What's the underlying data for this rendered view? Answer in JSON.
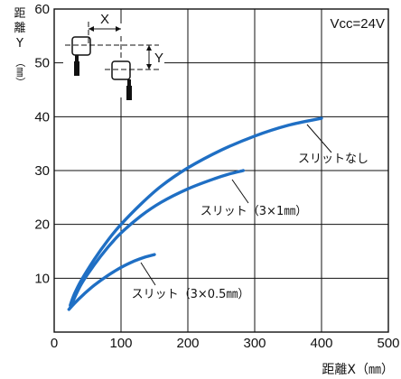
{
  "chart_data": {
    "type": "line",
    "xlabel": "距離X（㎜）",
    "ylabel_chars": [
      "距",
      "離",
      "Y",
      "（㎜）"
    ],
    "xlim": [
      0,
      500
    ],
    "ylim": [
      0,
      60
    ],
    "xticks": [
      0,
      100,
      200,
      300,
      400,
      500
    ],
    "yticks": [
      10,
      20,
      30,
      40,
      50,
      60
    ],
    "origin_label": "0",
    "grid": true,
    "annotation": "Vcc=24V",
    "inset": {
      "x_label": "X",
      "y_label": "Y"
    },
    "line_color": "#1f6fc4",
    "series": [
      {
        "name": "スリットなし",
        "points": [
          [
            24,
            5
          ],
          [
            30,
            7
          ],
          [
            40,
            9.5
          ],
          [
            60,
            13.5
          ],
          [
            80,
            17
          ],
          [
            100,
            20
          ],
          [
            130,
            23.8
          ],
          [
            160,
            27.1
          ],
          [
            200,
            30.5
          ],
          [
            250,
            33.8
          ],
          [
            300,
            36.4
          ],
          [
            350,
            38.4
          ],
          [
            400,
            39.7
          ]
        ]
      },
      {
        "name": "スリット（3×1㎜）",
        "points": [
          [
            24,
            4.6
          ],
          [
            40,
            8.8
          ],
          [
            60,
            12.5
          ],
          [
            80,
            15.7
          ],
          [
            100,
            18.4
          ],
          [
            130,
            21.6
          ],
          [
            160,
            24.1
          ],
          [
            200,
            26.6
          ],
          [
            240,
            28.5
          ],
          [
            260,
            29.3
          ],
          [
            283,
            30
          ]
        ]
      },
      {
        "name": "スリット（3×0.5㎜）",
        "points": [
          [
            22,
            4.2
          ],
          [
            30,
            5.3
          ],
          [
            45,
            7.1
          ],
          [
            60,
            8.7
          ],
          [
            80,
            10.5
          ],
          [
            100,
            12
          ],
          [
            120,
            13.2
          ],
          [
            135,
            13.9
          ],
          [
            150,
            14.4
          ]
        ]
      }
    ]
  }
}
